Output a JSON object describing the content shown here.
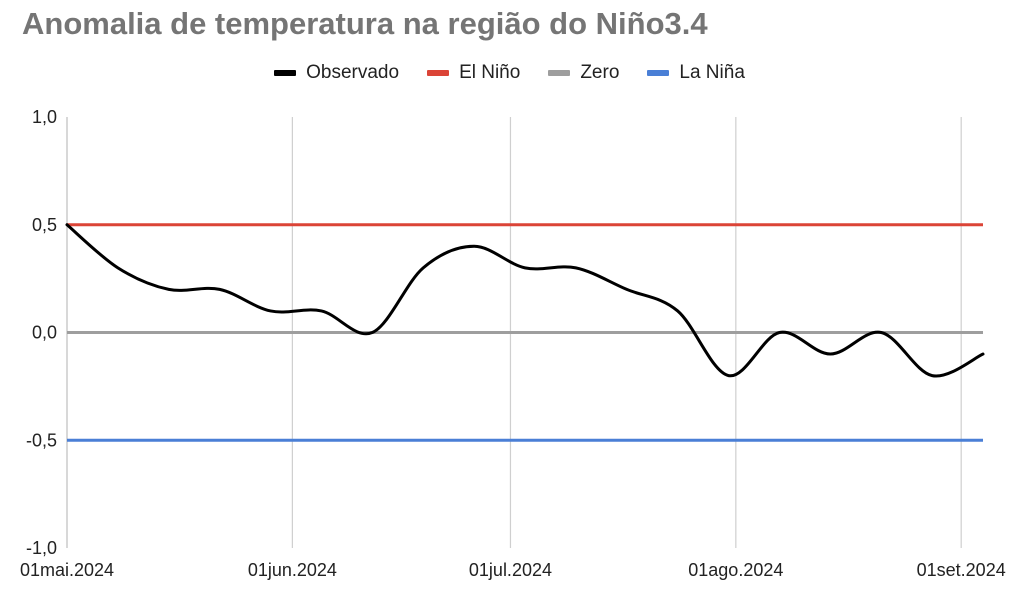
{
  "chart_data": {
    "type": "line",
    "title": "Anomalia de temperatura na região do Niño3.4",
    "xlabel": "",
    "ylabel": "",
    "x_dates": [
      "2024-05-01",
      "2024-05-08",
      "2024-05-15",
      "2024-05-22",
      "2024-05-29",
      "2024-06-05",
      "2024-06-12",
      "2024-06-19",
      "2024-06-26",
      "2024-07-03",
      "2024-07-10",
      "2024-07-17",
      "2024-07-24",
      "2024-07-31",
      "2024-08-07",
      "2024-08-14",
      "2024-08-21",
      "2024-08-28",
      "2024-09-04"
    ],
    "x_ticks": [
      {
        "date": "2024-05-01",
        "label": "01mai.2024"
      },
      {
        "date": "2024-06-01",
        "label": "01jun.2024"
      },
      {
        "date": "2024-07-01",
        "label": "01jul.2024"
      },
      {
        "date": "2024-08-01",
        "label": "01ago.2024"
      },
      {
        "date": "2024-09-01",
        "label": "01set.2024"
      }
    ],
    "y_ticks": [
      {
        "value": 1.0,
        "label": "1,0"
      },
      {
        "value": 0.5,
        "label": "0,5"
      },
      {
        "value": 0.0,
        "label": "0,0"
      },
      {
        "value": -0.5,
        "label": "-0,5"
      },
      {
        "value": -1.0,
        "label": "-1,0"
      }
    ],
    "ylim": [
      -1.0,
      1.0
    ],
    "xlim": [
      "2024-05-01",
      "2024-09-04"
    ],
    "grid": "vertical",
    "legend_position": "top",
    "series": [
      {
        "name": "Observado",
        "color": "#000000",
        "values": [
          0.5,
          0.3,
          0.2,
          0.2,
          0.1,
          0.1,
          0.0,
          0.3,
          0.4,
          0.3,
          0.3,
          0.2,
          0.1,
          -0.2,
          0.0,
          -0.1,
          0.0,
          -0.2,
          -0.1
        ]
      },
      {
        "name": "El Niño",
        "color": "#db4437",
        "constant": 0.5
      },
      {
        "name": "Zero",
        "color": "#9e9e9e",
        "constant": 0.0
      },
      {
        "name": "La Niña",
        "color": "#4a7fd6",
        "constant": -0.5
      }
    ]
  }
}
